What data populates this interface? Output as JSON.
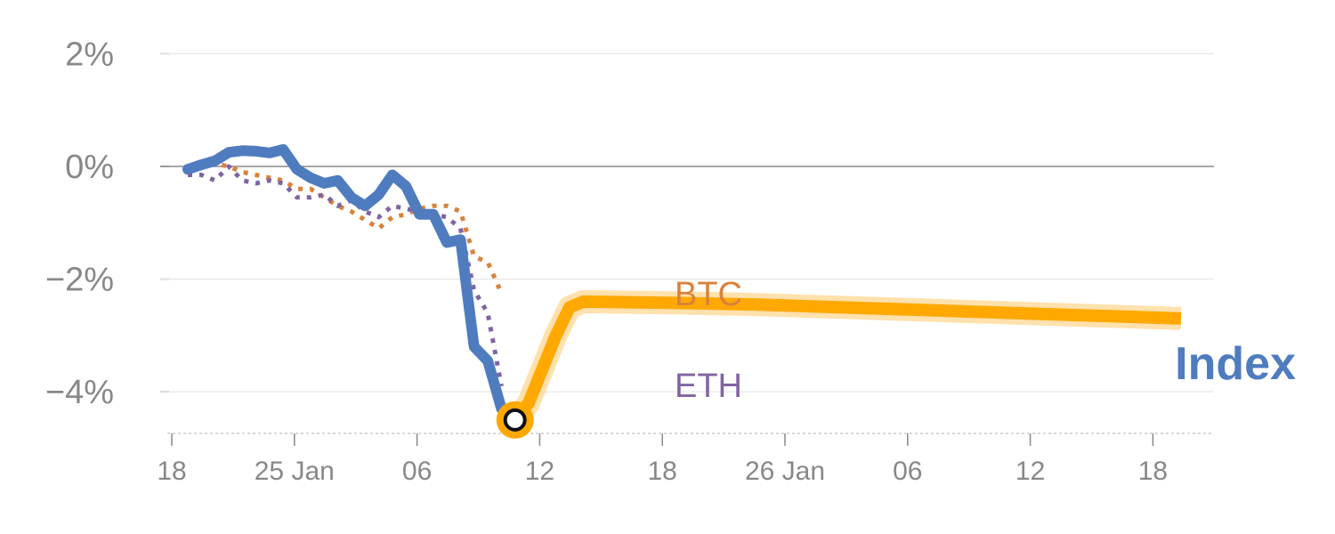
{
  "chart_data": {
    "type": "line",
    "title": "",
    "xlabel": "",
    "ylabel": "",
    "x_tick_labels": [
      "18",
      "25 Jan",
      "06",
      "12",
      "18",
      "26 Jan",
      "06",
      "12",
      "18"
    ],
    "y_tick_labels": [
      "2%",
      "0%",
      "−2%",
      "−4%"
    ],
    "y_ticks": [
      2,
      0,
      -2,
      -4
    ],
    "ylim": [
      -4.75,
      2.1
    ],
    "grid": true,
    "x_unit": "days",
    "xlim": [
      0,
      51
    ],
    "series": [
      {
        "name": "Index",
        "color": "#4f7cbf",
        "style": "solid",
        "x": [
          0,
          1,
          2,
          3,
          4,
          5,
          6,
          7,
          8,
          9,
          10,
          11,
          12,
          13,
          14,
          15,
          16,
          17,
          18,
          19,
          20,
          21,
          22,
          23,
          24,
          25,
          26,
          27,
          28,
          29,
          30,
          31,
          32,
          33,
          34,
          35,
          36
        ],
        "values": [
          -0.05,
          0.03,
          0.1,
          0.25,
          0.28,
          0.27,
          0.24,
          0.3,
          -0.05,
          -0.2,
          -0.3,
          -0.25,
          -0.55,
          -0.7,
          -0.5,
          -0.15,
          -0.35,
          -0.85,
          -0.85,
          -1.35,
          -1.3,
          -3.2,
          -3.45,
          -4.3,
          -4.5,
          -4.2,
          -3.6,
          -3.0,
          -2.5,
          -2.4,
          -2.42,
          -2.45,
          -2.5,
          -2.55,
          -2.6,
          -2.65,
          -2.7
        ]
      },
      {
        "name": "BTC",
        "color": "#d9823b",
        "style": "dotted",
        "x": [
          0,
          1,
          2,
          3,
          4,
          5,
          6,
          7,
          8,
          9,
          10,
          11,
          12,
          13,
          14,
          15,
          16,
          17,
          18,
          19,
          20,
          21,
          22,
          23
        ],
        "values": [
          -0.05,
          0.0,
          0.05,
          0.0,
          -0.1,
          -0.15,
          -0.2,
          -0.25,
          -0.4,
          -0.4,
          -0.55,
          -0.7,
          -0.8,
          -0.95,
          -1.1,
          -0.9,
          -0.85,
          -0.75,
          -0.7,
          -0.7,
          -0.8,
          -1.6,
          -1.7,
          -2.25
        ]
      },
      {
        "name": "ETH",
        "color": "#8064a2",
        "style": "dotted",
        "x": [
          0,
          1,
          2,
          3,
          4,
          5,
          6,
          7,
          8,
          9,
          10,
          11,
          12,
          13,
          14,
          15,
          16,
          17,
          18,
          19,
          20,
          21,
          22,
          23
        ],
        "values": [
          -0.15,
          -0.15,
          -0.25,
          0.0,
          -0.25,
          -0.3,
          -0.25,
          -0.3,
          -0.55,
          -0.55,
          -0.5,
          -0.7,
          -0.6,
          -0.8,
          -0.9,
          -0.7,
          -0.75,
          -0.8,
          -0.85,
          -0.9,
          -1.1,
          -2.2,
          -2.6,
          -3.9
        ]
      }
    ],
    "highlight_color": "#ffa800",
    "highlight_from_x": 24,
    "marker_x": 24,
    "marker_y": -4.5
  }
}
